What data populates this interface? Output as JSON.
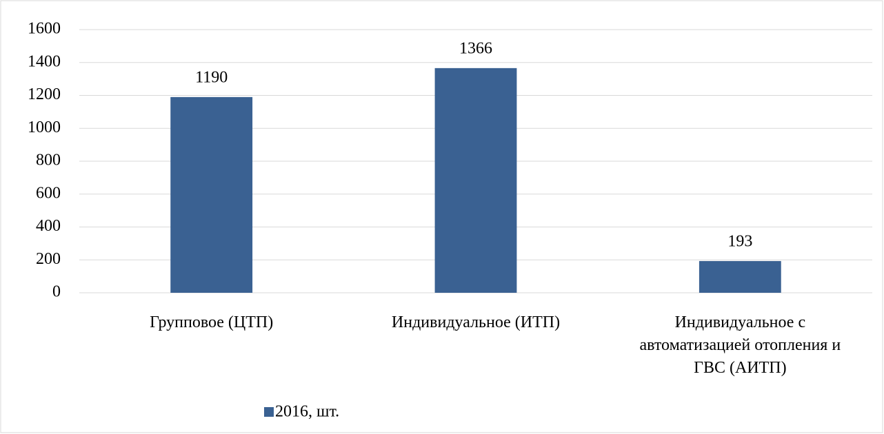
{
  "chart_data": {
    "type": "bar",
    "categories": [
      "Групповое (ЦТП)",
      "Индивидуальное (ИТП)",
      "Индивидуальное с автоматизацией отопления и ГВС (АИТП)"
    ],
    "series": [
      {
        "name": "2016, шт.",
        "color": "#3a6192",
        "values": [
          1190,
          1366,
          193
        ]
      }
    ],
    "ylim": [
      0,
      1600
    ],
    "yticks": [
      0,
      200,
      400,
      600,
      800,
      1000,
      1200,
      1400,
      1600
    ],
    "grid": true,
    "legend": "bottom"
  }
}
